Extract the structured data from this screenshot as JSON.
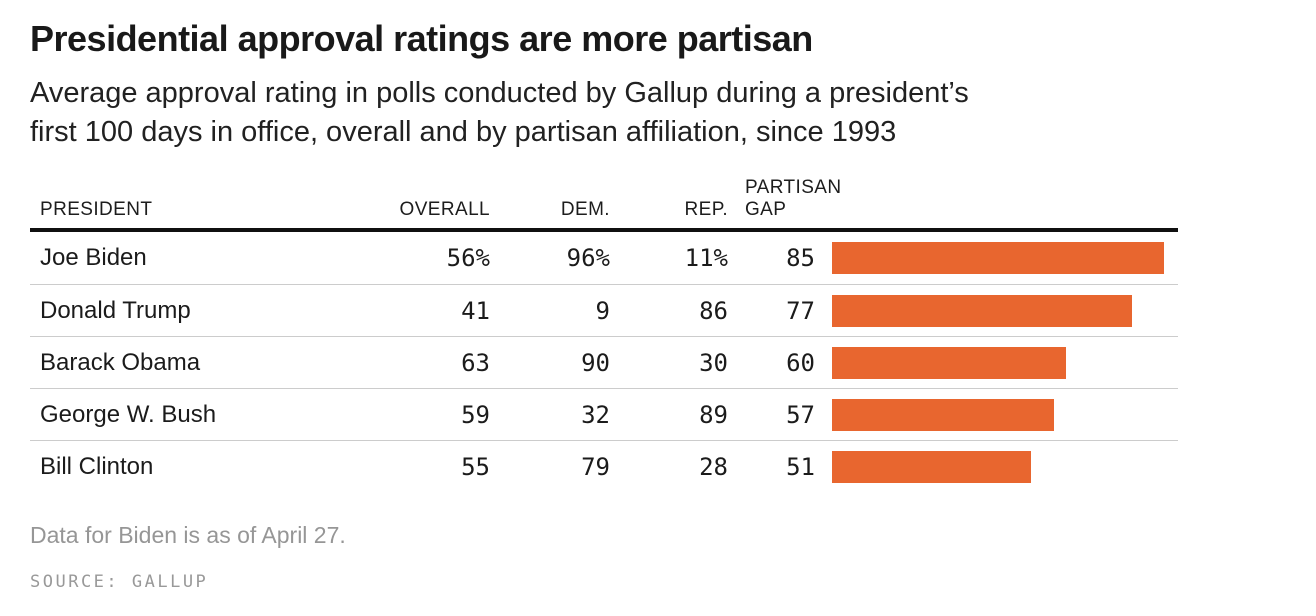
{
  "header": {
    "title": "Presidential approval ratings are more partisan",
    "subtitle_line1": "Average approval rating in polls conducted by Gallup during a president’s",
    "subtitle_line2": "first 100 days in office, overall and by partisan affiliation, since 1993"
  },
  "table": {
    "columns": {
      "president": "PRESIDENT",
      "overall": "OVERALL",
      "dem": "DEM.",
      "rep": "REP.",
      "gap": "PARTISAN GAP"
    },
    "rows": [
      {
        "name": "Joe Biden",
        "overall": "56%",
        "dem": "96%",
        "rep": "11%",
        "gap": "85",
        "gap_value": 85
      },
      {
        "name": "Donald Trump",
        "overall": "41",
        "dem": "9",
        "rep": "86",
        "gap": "77",
        "gap_value": 77
      },
      {
        "name": "Barack Obama",
        "overall": "63",
        "dem": "90",
        "rep": "30",
        "gap": "60",
        "gap_value": 60
      },
      {
        "name": "George W. Bush",
        "overall": "59",
        "dem": "32",
        "rep": "89",
        "gap": "57",
        "gap_value": 57
      },
      {
        "name": "Bill Clinton",
        "overall": "55",
        "dem": "79",
        "rep": "28",
        "gap": "51",
        "gap_value": 51
      }
    ]
  },
  "footer": {
    "note": "Data for Biden is as of April 27.",
    "source": "SOURCE: GALLUP"
  },
  "colors": {
    "bar_orange": "#e8662f",
    "header_rule": "#101010",
    "row_separator": "#cccccc",
    "text": "#1b1b1b",
    "muted_gray": "#969696"
  },
  "chart_data": {
    "type": "bar",
    "title": "Presidential approval ratings are more partisan",
    "subtitle": "Average approval rating in polls conducted by Gallup during a president’s first 100 days in office, overall and by partisan affiliation, since 1993",
    "categories": [
      "Joe Biden",
      "Donald Trump",
      "Barack Obama",
      "George W. Bush",
      "Bill Clinton"
    ],
    "series": [
      {
        "name": "Overall",
        "values": [
          56,
          41,
          63,
          59,
          55
        ]
      },
      {
        "name": "Dem.",
        "values": [
          96,
          9,
          90,
          32,
          79
        ]
      },
      {
        "name": "Rep.",
        "values": [
          11,
          86,
          30,
          89,
          28
        ]
      },
      {
        "name": "Partisan gap",
        "values": [
          85,
          77,
          60,
          57,
          51
        ]
      }
    ],
    "bars_shown_for_series": "Partisan gap",
    "orientation": "horizontal",
    "xlim": [
      0,
      100
    ],
    "grid": false,
    "legend_position": "none",
    "bar_color": "#e8662f",
    "note": "Data for Biden is as of April 27.",
    "source": "SOURCE: GALLUP"
  }
}
